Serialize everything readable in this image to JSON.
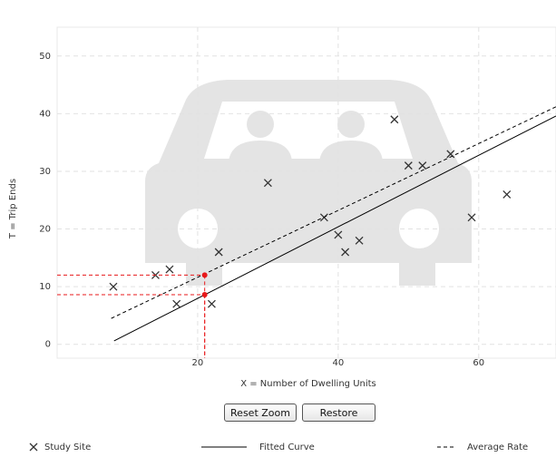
{
  "chart_data": {
    "type": "scatter",
    "xlabel": "X = Number of Dwelling Units",
    "ylabel": "T = Trip Ends",
    "xlim": [
      0,
      71
    ],
    "ylim": [
      -2.4,
      55
    ],
    "xticks": [
      20,
      40,
      60
    ],
    "yticks": [
      0,
      10,
      20,
      30,
      40,
      50
    ],
    "grid": true,
    "series": [
      {
        "name": "Study Site",
        "type": "scatter",
        "color": "#333333",
        "x": [
          8,
          14,
          16,
          17,
          22,
          23,
          30,
          38,
          40,
          41,
          43,
          48,
          50,
          52,
          56,
          59,
          64
        ],
        "values": [
          10,
          12,
          13,
          7,
          7,
          16,
          28,
          22,
          19,
          16,
          18,
          39,
          31,
          31,
          33,
          22,
          26
        ]
      },
      {
        "name": "Fitted Curve",
        "type": "line",
        "color": "#000000",
        "dashed": false,
        "x": [
          8.1,
          71
        ],
        "values": [
          0.6,
          39.6
        ]
      },
      {
        "name": "Average Rate",
        "type": "line",
        "color": "#000000",
        "dashed": true,
        "x": [
          7.7,
          71
        ],
        "values": [
          4.5,
          41.2
        ]
      },
      {
        "type": "marker",
        "color": "#e8191b",
        "x": [
          21,
          21
        ],
        "values": [
          12,
          8.6
        ]
      }
    ],
    "controls": [
      "Reset Zoom",
      "Restore"
    ]
  }
}
